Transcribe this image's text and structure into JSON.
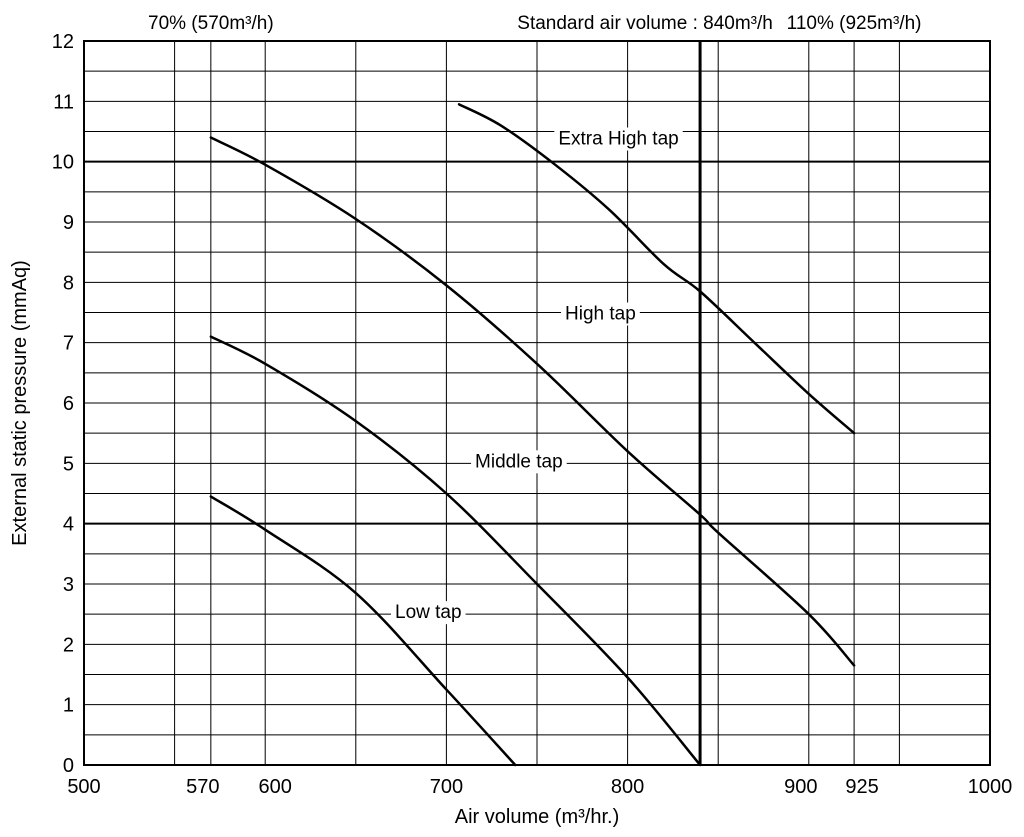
{
  "chart_data": {
    "type": "line",
    "xlabel": "Air volume (m³/hr.)",
    "ylabel": "External static pressure (mmAq)",
    "xlim": [
      500,
      1000
    ],
    "ylim": [
      0,
      12
    ],
    "x_ticks": [
      500,
      570,
      600,
      700,
      800,
      900,
      925,
      1000
    ],
    "y_ticks": [
      0,
      1,
      2,
      3,
      4,
      5,
      6,
      7,
      8,
      9,
      10,
      11,
      12
    ],
    "x_gridlines": [
      550,
      570,
      600,
      650,
      700,
      750,
      800,
      850,
      900,
      925,
      950
    ],
    "y_minor_step": 0.5,
    "y_heavy_lines": [
      4,
      10
    ],
    "grid": true,
    "annotations": [
      {
        "text": "70% (570m³/h)",
        "x": 570
      },
      {
        "text": "Standard air volume : 840m³/h",
        "x": 840
      },
      {
        "text": "110% (925m³/h)",
        "x": 925
      }
    ],
    "reference_line": {
      "x": 840
    },
    "series": [
      {
        "name": "Extra High tap",
        "label_at": {
          "x": 795,
          "y": 10.4
        },
        "points": [
          [
            707,
            10.95
          ],
          [
            730,
            10.6
          ],
          [
            760,
            9.95
          ],
          [
            790,
            9.2
          ],
          [
            820,
            8.3
          ],
          [
            840,
            7.85
          ],
          [
            870,
            7.0
          ],
          [
            900,
            6.15
          ],
          [
            925,
            5.5
          ]
        ]
      },
      {
        "name": "High tap",
        "label_at": {
          "x": 785,
          "y": 7.5
        },
        "points": [
          [
            570,
            10.4
          ],
          [
            600,
            9.95
          ],
          [
            650,
            9.05
          ],
          [
            700,
            7.95
          ],
          [
            750,
            6.65
          ],
          [
            800,
            5.2
          ],
          [
            840,
            4.15
          ],
          [
            850,
            3.85
          ],
          [
            900,
            2.5
          ],
          [
            925,
            1.65
          ]
        ]
      },
      {
        "name": "Middle tap",
        "label_at": {
          "x": 740,
          "y": 5.05
        },
        "points": [
          [
            570,
            7.1
          ],
          [
            600,
            6.65
          ],
          [
            650,
            5.7
          ],
          [
            700,
            4.5
          ],
          [
            750,
            3.0
          ],
          [
            800,
            1.45
          ],
          [
            840,
            0.0
          ]
        ]
      },
      {
        "name": "Low tap",
        "label_at": {
          "x": 690,
          "y": 2.55
        },
        "points": [
          [
            570,
            4.45
          ],
          [
            600,
            3.9
          ],
          [
            650,
            2.85
          ],
          [
            700,
            1.25
          ],
          [
            738,
            0.0
          ]
        ]
      }
    ]
  }
}
